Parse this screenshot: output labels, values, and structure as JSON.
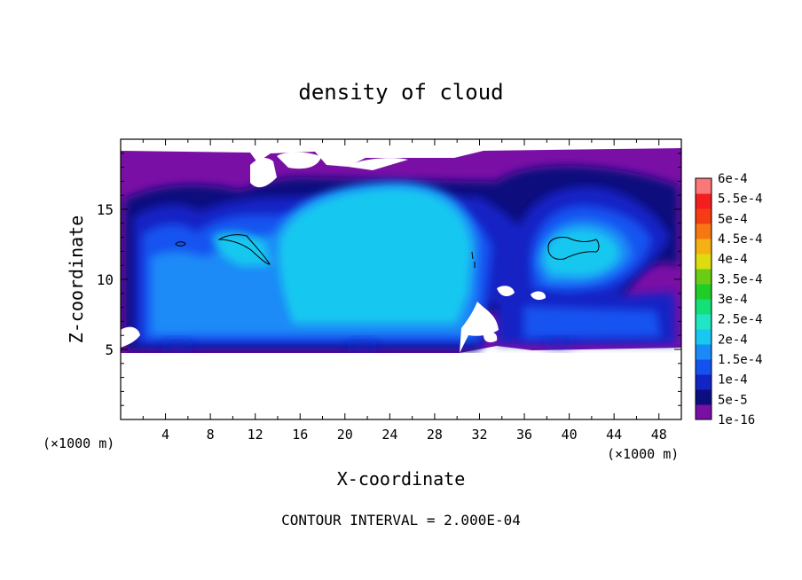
{
  "chart_data": {
    "type": "heatmap",
    "subtype": "filled-contour",
    "title": "density of cloud",
    "xlabel": "X-coordinate",
    "ylabel": "Z-coordinate",
    "x_unit_left": "(×1000 m)",
    "x_unit_right": "(×1000 m)",
    "xlim": [
      0,
      50
    ],
    "ylim": [
      0,
      20
    ],
    "x_ticks": [
      4,
      8,
      12,
      16,
      20,
      24,
      28,
      32,
      36,
      40,
      44,
      48
    ],
    "x_tick_labels": [
      "4",
      "8",
      "12",
      "16",
      "20",
      "24",
      "28",
      "32",
      "36",
      "40",
      "44",
      "48"
    ],
    "y_ticks": [
      5,
      10,
      15
    ],
    "y_tick_labels": [
      "5",
      "10",
      "15"
    ],
    "footer": "CONTOUR INTERVAL = 2.000E-04",
    "colorbar": {
      "labels": [
        "1e-16",
        "5e-5",
        "1e-4",
        "1.5e-4",
        "2e-4",
        "2.5e-4",
        "3e-4",
        "3.5e-4",
        "4e-4",
        "4.5e-4",
        "5e-4",
        "5.5e-4",
        "6e-4"
      ],
      "colors": [
        "#7a0fa6",
        "#0c0d7e",
        "#1224c4",
        "#1452f0",
        "#1a8af7",
        "#18c8f0",
        "#1fe6c4",
        "#14e07a",
        "#20cc28",
        "#6acc14",
        "#dcdc10",
        "#f5b014",
        "#f57814",
        "#f53c14",
        "#f51e1e",
        "#fa7878"
      ]
    },
    "cloud_layer_z_range": [
      5,
      19
    ],
    "contour_line_value": "2.000E-04"
  }
}
